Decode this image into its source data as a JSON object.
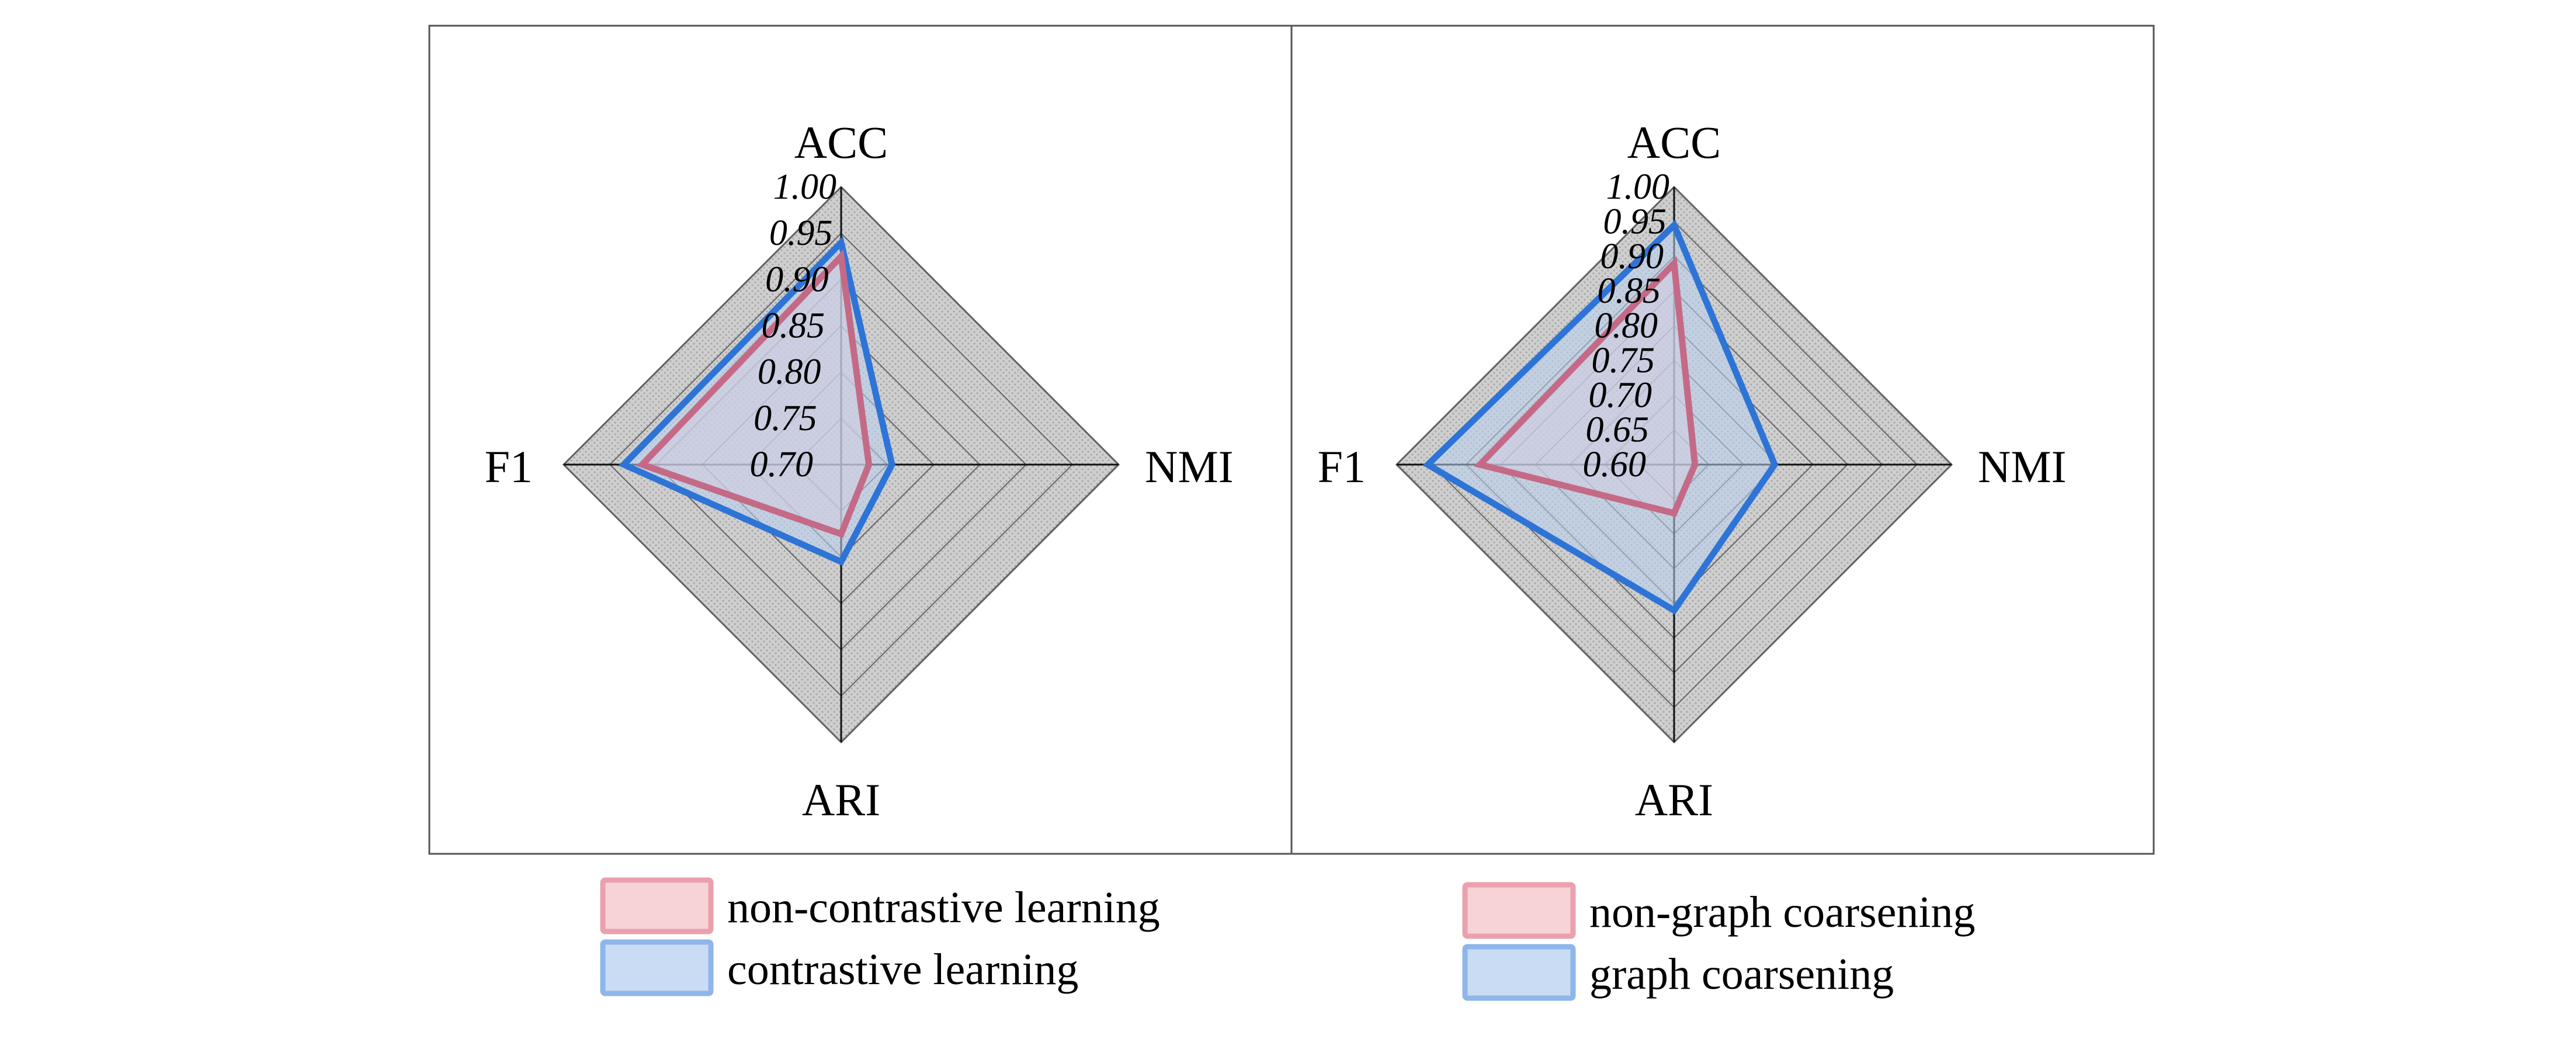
{
  "chart_data": [
    {
      "type": "radar",
      "axes": [
        "ACC",
        "NMI",
        "ARI",
        "F1"
      ],
      "ticks": [
        "0.70",
        "0.75",
        "0.80",
        "0.85",
        "0.90",
        "0.95",
        "1.00"
      ],
      "range": [
        0.7,
        1.0
      ],
      "grid": true,
      "series": [
        {
          "name": "non-contrastive learning",
          "color": "#c46a86",
          "fill": "#f4c9d0",
          "values": [
            0.925,
            0.73,
            0.775,
            0.915
          ]
        },
        {
          "name": "contrastive learning",
          "color": "#2d74d6",
          "fill": "#b9d1f0",
          "values": [
            0.94,
            0.755,
            0.805,
            0.935
          ]
        }
      ],
      "legend": "bottom"
    },
    {
      "type": "radar",
      "axes": [
        "ACC",
        "NMI",
        "ARI",
        "F1"
      ],
      "ticks": [
        "0.60",
        "0.65",
        "0.70",
        "0.75",
        "0.80",
        "0.85",
        "0.90",
        "0.95",
        "1.00"
      ],
      "range": [
        0.6,
        1.0
      ],
      "grid": true,
      "series": [
        {
          "name": "non-graph coarsening",
          "color": "#c46a86",
          "fill": "#f4c9d0",
          "values": [
            0.89,
            0.63,
            0.67,
            0.88
          ]
        },
        {
          "name": "graph coarsening",
          "color": "#2d74d6",
          "fill": "#b9d1f0",
          "values": [
            0.945,
            0.745,
            0.81,
            0.955
          ]
        }
      ],
      "legend": "bottom"
    }
  ]
}
